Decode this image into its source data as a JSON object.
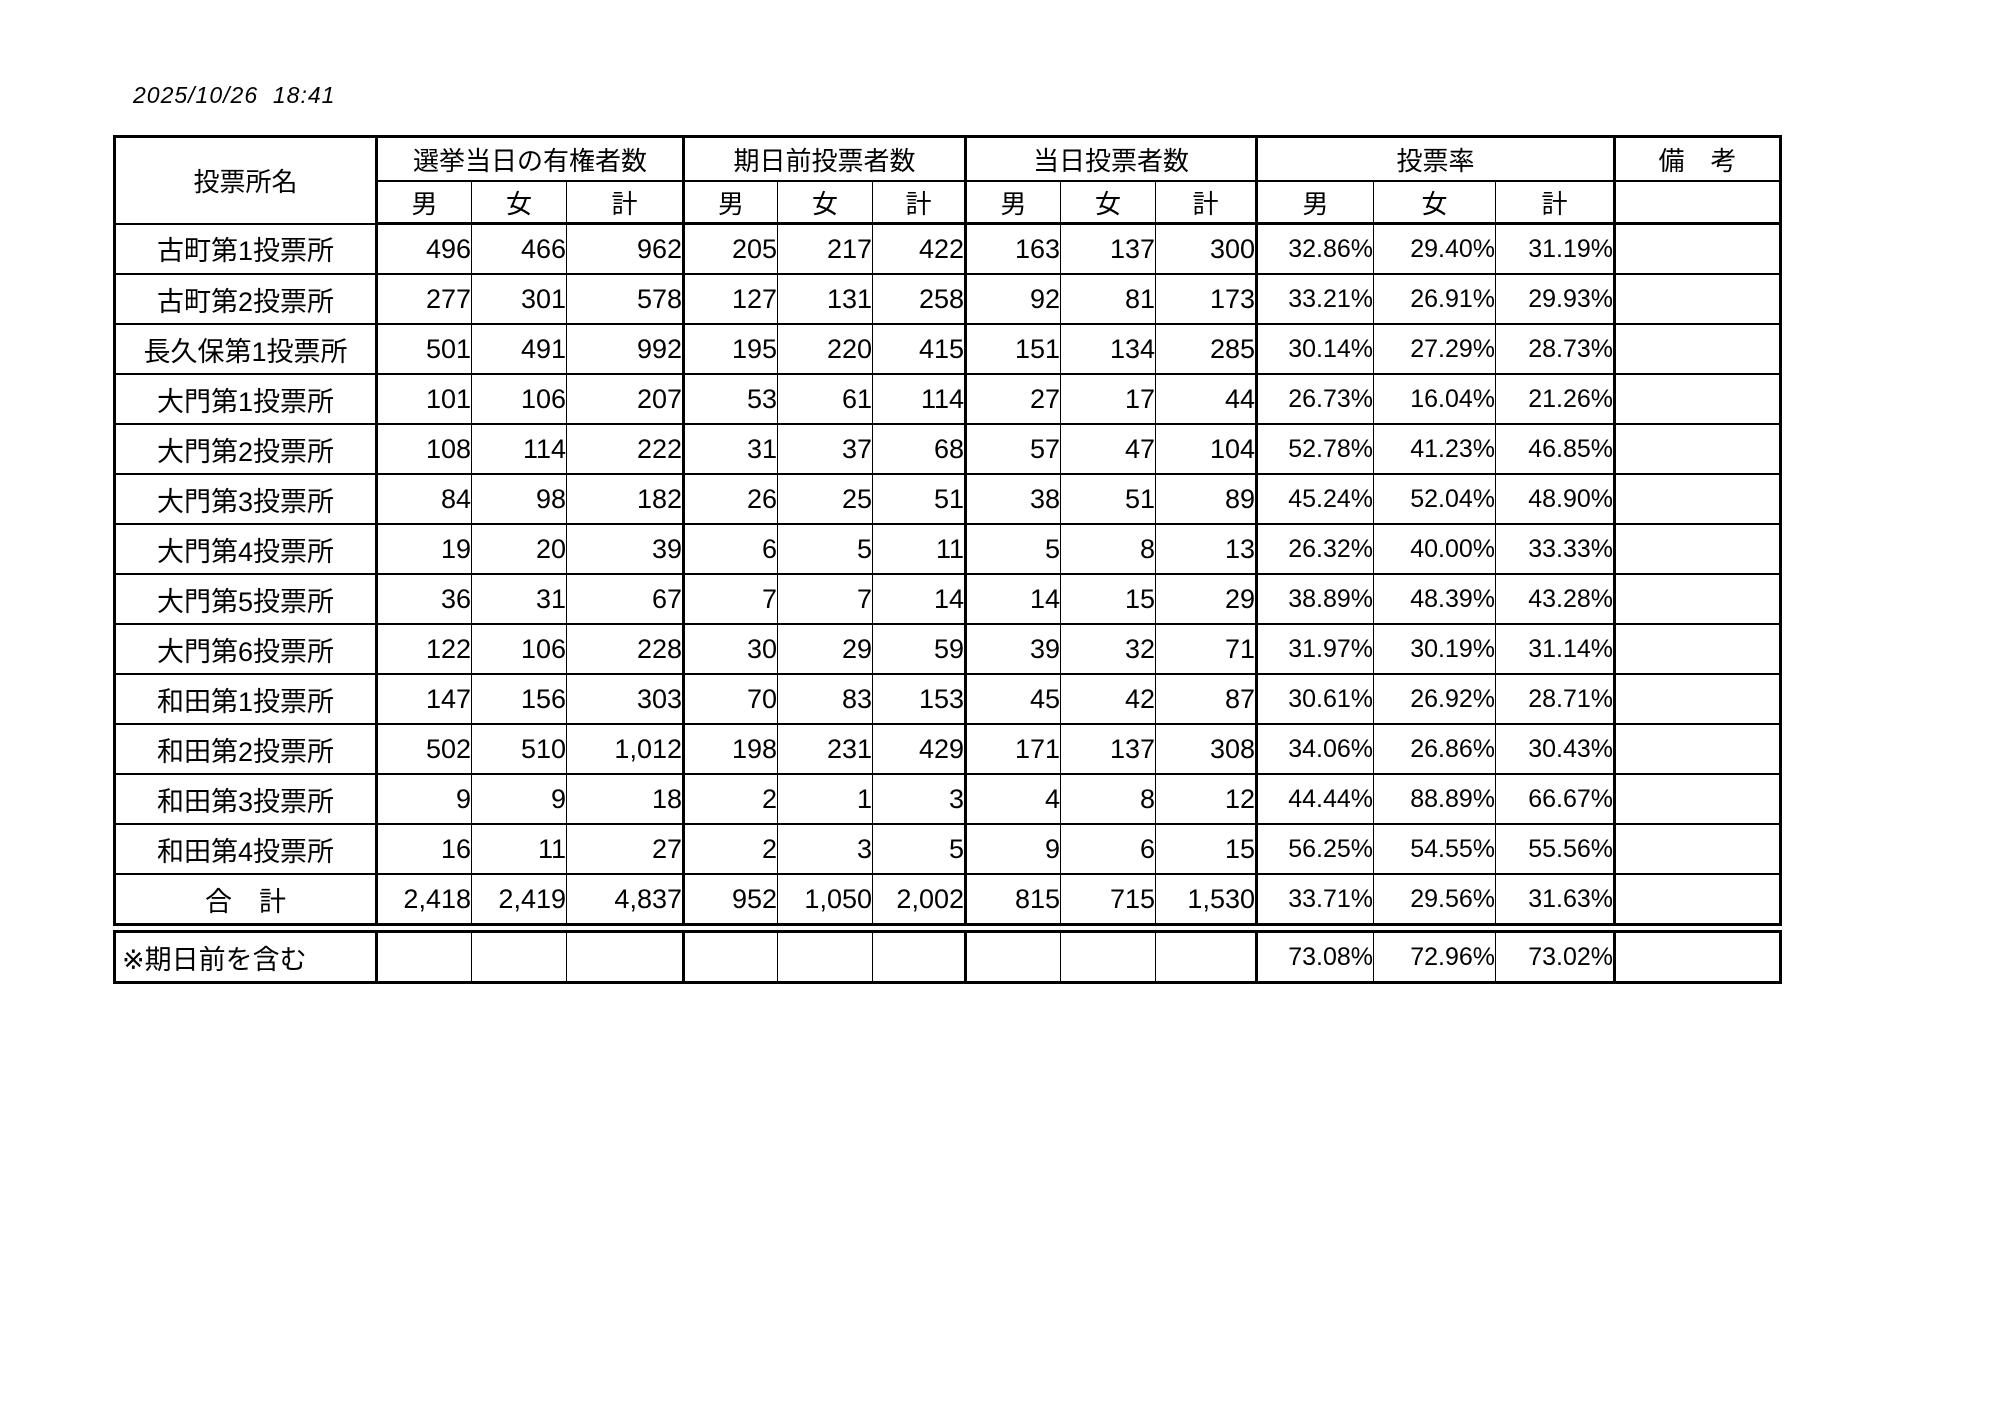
{
  "page": {
    "timestamp": "2025/10/26  18:41"
  },
  "table": {
    "header": {
      "station": "投票所名",
      "groups": [
        {
          "label": "選挙当日の有権者数",
          "cols": [
            "男",
            "女",
            "計"
          ]
        },
        {
          "label": "期日前投票者数",
          "cols": [
            "男",
            "女",
            "計"
          ]
        },
        {
          "label": "当日投票者数",
          "cols": [
            "男",
            "女",
            "計"
          ]
        },
        {
          "label": "投票率",
          "cols": [
            "男",
            "女",
            "計"
          ]
        }
      ],
      "remarks": "備　考"
    },
    "rows": [
      {
        "name": "古町第1投票所",
        "values": [
          "496",
          "466",
          "962",
          "205",
          "217",
          "422",
          "163",
          "137",
          "300",
          "32.86%",
          "29.40%",
          "31.19%"
        ],
        "remark": ""
      },
      {
        "name": "古町第2投票所",
        "values": [
          "277",
          "301",
          "578",
          "127",
          "131",
          "258",
          "92",
          "81",
          "173",
          "33.21%",
          "26.91%",
          "29.93%"
        ],
        "remark": ""
      },
      {
        "name": "長久保第1投票所",
        "values": [
          "501",
          "491",
          "992",
          "195",
          "220",
          "415",
          "151",
          "134",
          "285",
          "30.14%",
          "27.29%",
          "28.73%"
        ],
        "remark": ""
      },
      {
        "name": "大門第1投票所",
        "values": [
          "101",
          "106",
          "207",
          "53",
          "61",
          "114",
          "27",
          "17",
          "44",
          "26.73%",
          "16.04%",
          "21.26%"
        ],
        "remark": ""
      },
      {
        "name": "大門第2投票所",
        "values": [
          "108",
          "114",
          "222",
          "31",
          "37",
          "68",
          "57",
          "47",
          "104",
          "52.78%",
          "41.23%",
          "46.85%"
        ],
        "remark": ""
      },
      {
        "name": "大門第3投票所",
        "values": [
          "84",
          "98",
          "182",
          "26",
          "25",
          "51",
          "38",
          "51",
          "89",
          "45.24%",
          "52.04%",
          "48.90%"
        ],
        "remark": ""
      },
      {
        "name": "大門第4投票所",
        "values": [
          "19",
          "20",
          "39",
          "6",
          "5",
          "11",
          "5",
          "8",
          "13",
          "26.32%",
          "40.00%",
          "33.33%"
        ],
        "remark": ""
      },
      {
        "name": "大門第5投票所",
        "values": [
          "36",
          "31",
          "67",
          "7",
          "7",
          "14",
          "14",
          "15",
          "29",
          "38.89%",
          "48.39%",
          "43.28%"
        ],
        "remark": ""
      },
      {
        "name": "大門第6投票所",
        "values": [
          "122",
          "106",
          "228",
          "30",
          "29",
          "59",
          "39",
          "32",
          "71",
          "31.97%",
          "30.19%",
          "31.14%"
        ],
        "remark": ""
      },
      {
        "name": "和田第1投票所",
        "values": [
          "147",
          "156",
          "303",
          "70",
          "83",
          "153",
          "45",
          "42",
          "87",
          "30.61%",
          "26.92%",
          "28.71%"
        ],
        "remark": ""
      },
      {
        "name": "和田第2投票所",
        "values": [
          "502",
          "510",
          "1,012",
          "198",
          "231",
          "429",
          "171",
          "137",
          "308",
          "34.06%",
          "26.86%",
          "30.43%"
        ],
        "remark": ""
      },
      {
        "name": "和田第3投票所",
        "values": [
          "9",
          "9",
          "18",
          "2",
          "1",
          "3",
          "4",
          "8",
          "12",
          "44.44%",
          "88.89%",
          "66.67%"
        ],
        "remark": ""
      },
      {
        "name": "和田第4投票所",
        "values": [
          "16",
          "11",
          "27",
          "2",
          "3",
          "5",
          "9",
          "6",
          "15",
          "56.25%",
          "54.55%",
          "55.56%"
        ],
        "remark": ""
      }
    ],
    "total_row": {
      "name": "合　計",
      "values": [
        "2,418",
        "2,419",
        "4,837",
        "952",
        "1,050",
        "2,002",
        "815",
        "715",
        "1,530",
        "33.71%",
        "29.56%",
        "31.63%"
      ],
      "remark": ""
    },
    "footnote_row": {
      "name": "※期日前を含む",
      "values": [
        "",
        "",
        "",
        "",
        "",
        "",
        "",
        "",
        "",
        "73.08%",
        "72.96%",
        "73.02%"
      ],
      "remark": ""
    }
  }
}
